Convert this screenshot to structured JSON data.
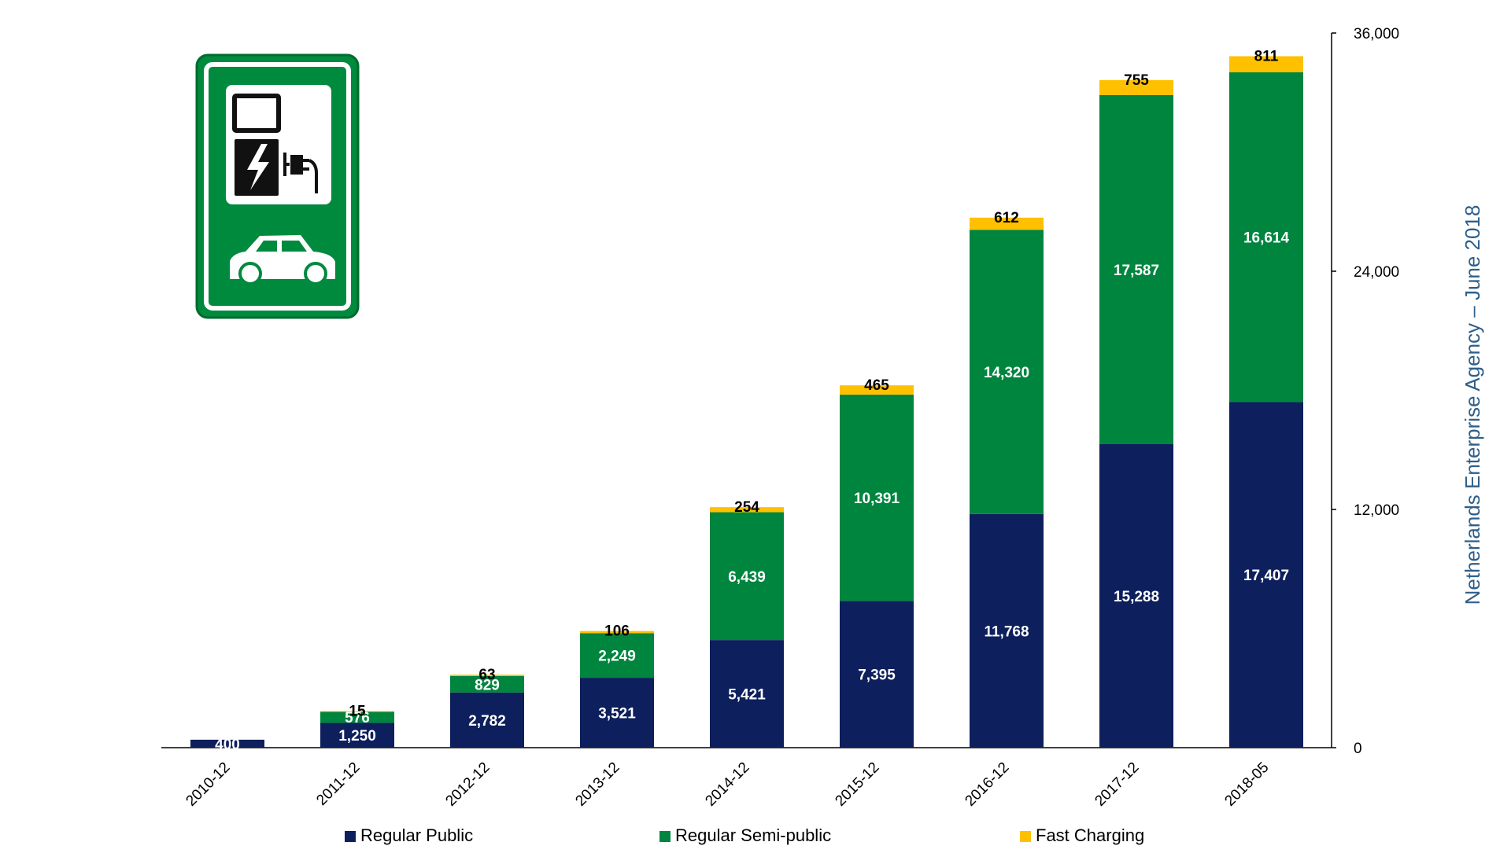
{
  "chart_data": {
    "type": "bar",
    "stacked": true,
    "categories": [
      "2010-12",
      "2011-12",
      "2012-12",
      "2013-12",
      "2014-12",
      "2015-12",
      "2016-12",
      "2017-12",
      "2018-05"
    ],
    "series": [
      {
        "name": "Regular Public",
        "color": "#0d1f5c",
        "values": [
          400,
          1250,
          2782,
          3521,
          5421,
          7395,
          11768,
          15288,
          17407
        ],
        "labels": [
          "400",
          "1,250",
          "2,782",
          "3,521",
          "5,421",
          "7,395",
          "11,768",
          "15,288",
          "17,407"
        ],
        "label_color": "#ffffff"
      },
      {
        "name": "Regular Semi-public",
        "color": "#00853f",
        "values": [
          0,
          576,
          829,
          2249,
          6439,
          10391,
          14320,
          17587,
          16614
        ],
        "labels": [
          "",
          "576",
          "829",
          "2,249",
          "6,439",
          "10,391",
          "14,320",
          "17,587",
          "16,614"
        ],
        "label_color": "#ffffff"
      },
      {
        "name": "Fast Charging",
        "color": "#ffc000",
        "values": [
          0,
          15,
          63,
          106,
          254,
          465,
          612,
          755,
          811
        ],
        "labels": [
          "",
          "15",
          "63",
          "106",
          "254",
          "465",
          "612",
          "755",
          "811"
        ],
        "label_color": "#000000"
      }
    ],
    "y_axis_side": "right",
    "ylim": [
      0,
      36000
    ],
    "yticks": [
      0,
      12000,
      24000,
      36000
    ],
    "ytick_labels": [
      "0",
      "12,000",
      "24,000",
      "36,000"
    ],
    "ylabel": "Netherlands Enterprise Agency – June 2018",
    "ylabel_color": "#2e5f8a",
    "grid": false,
    "legend_position": "bottom"
  },
  "sign_icon": "ev-charging-station-sign-icon"
}
